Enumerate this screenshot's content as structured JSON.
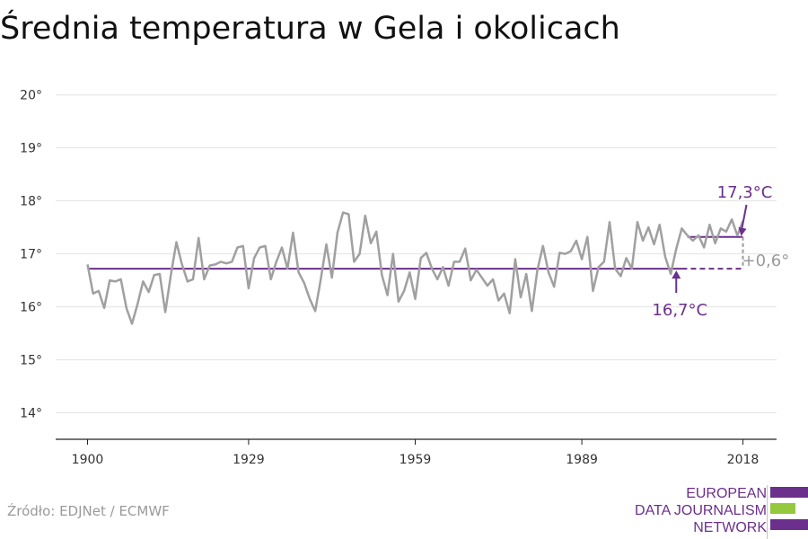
{
  "title": "Średnia temperatura w Gela i okolicach",
  "source": "Źródło: EDJNet / ECMWF",
  "logo": {
    "line1": "EUROPEAN",
    "line2": "DATA JOURNALISM",
    "line3": "NETWORK"
  },
  "colors": {
    "series": "#a0a0a0",
    "baseline": "#6b2f8c",
    "accent": "#6b2f8c",
    "delta": "#9a9a9a",
    "grid": "#e3e3e3",
    "logo_purple": "#6b2f8c",
    "logo_green": "#94c93d"
  },
  "chart_data": {
    "type": "line",
    "title": "Średnia temperatura w Gela i okolicach",
    "xlabel": "",
    "ylabel": "",
    "xlim": [
      1900,
      2018
    ],
    "ylim": [
      13.5,
      20.3
    ],
    "x_ticks": [
      1900,
      1929,
      1959,
      1989,
      2018
    ],
    "x_tick_labels": [
      "1900",
      "1929",
      "1959",
      "1989",
      "2018"
    ],
    "y_ticks": [
      14,
      15,
      16,
      17,
      18,
      19,
      20
    ],
    "y_tick_labels": [
      "14°",
      "15°",
      "16°",
      "17°",
      "18°",
      "19°",
      "20°"
    ],
    "grid": true,
    "series": [
      {
        "x": [
          1900,
          1901,
          1902,
          1903,
          1904,
          1905,
          1906,
          1907,
          1908,
          1909,
          1910,
          1911,
          1912,
          1913,
          1914,
          1915,
          1916,
          1917,
          1918,
          1919,
          1920,
          1921,
          1922,
          1923,
          1924,
          1925,
          1926,
          1927,
          1928,
          1929,
          1930,
          1931,
          1932,
          1933,
          1934,
          1935,
          1936,
          1937,
          1938,
          1939,
          1940,
          1941,
          1942,
          1943,
          1944,
          1945,
          1946,
          1947,
          1948,
          1949,
          1950,
          1951,
          1952,
          1953,
          1954,
          1955,
          1956,
          1957,
          1958,
          1959,
          1960,
          1961,
          1962,
          1963,
          1964,
          1965,
          1966,
          1967,
          1968,
          1969,
          1970,
          1971,
          1972,
          1973,
          1974,
          1975,
          1976,
          1977,
          1978,
          1979,
          1980,
          1981,
          1982,
          1983,
          1984,
          1985,
          1986,
          1987,
          1988,
          1989,
          1990,
          1991,
          1992,
          1993,
          1994,
          1995,
          1996,
          1997,
          1998,
          1999,
          2000,
          2001,
          2002,
          2003,
          2004,
          2005,
          2006,
          2007,
          2008,
          2009,
          2010,
          2011,
          2012,
          2013,
          2014,
          2015,
          2016,
          2017,
          2018
        ],
        "values": [
          16.8,
          16.25,
          16.3,
          15.98,
          16.5,
          16.48,
          16.52,
          15.98,
          15.68,
          16.05,
          16.48,
          16.28,
          16.6,
          16.62,
          15.9,
          16.6,
          17.22,
          16.8,
          16.48,
          16.52,
          17.3,
          16.52,
          16.78,
          16.8,
          16.85,
          16.82,
          16.85,
          17.12,
          17.15,
          16.35,
          16.92,
          17.12,
          17.15,
          16.52,
          16.85,
          17.12,
          16.72,
          17.4,
          16.65,
          16.45,
          16.15,
          15.92,
          16.52,
          17.18,
          16.55,
          17.4,
          17.78,
          17.75,
          16.85,
          17.0,
          17.72,
          17.2,
          17.42,
          16.6,
          16.22,
          17.0,
          16.1,
          16.3,
          16.65,
          16.15,
          16.92,
          17.02,
          16.72,
          16.52,
          16.75,
          16.4,
          16.85,
          16.85,
          17.1,
          16.5,
          16.7,
          16.55,
          16.4,
          16.52,
          16.12,
          16.25,
          15.88,
          16.9,
          16.18,
          16.62,
          15.92,
          16.7,
          17.15,
          16.65,
          16.38,
          17.02,
          17.0,
          17.05,
          17.25,
          16.9,
          17.32,
          16.3,
          16.75,
          16.85,
          17.6,
          16.72,
          16.58,
          16.92,
          16.72,
          17.6,
          17.25,
          17.5,
          17.18,
          17.55,
          16.95,
          16.62,
          17.1,
          17.48,
          17.35,
          17.25,
          17.35,
          17.12,
          17.55,
          17.2,
          17.48,
          17.42,
          17.65,
          17.35,
          17.62
        ]
      }
    ],
    "annotations": {
      "baseline_label": "16,7°C",
      "baseline_value": 16.72,
      "baseline_x_end": 2018,
      "baseline_solid_end": 2007,
      "recent_label": "17,3°C",
      "recent_value": 17.32,
      "recent_x_start": 2008,
      "recent_x_end": 2018,
      "delta_label": "+0,6°"
    }
  }
}
